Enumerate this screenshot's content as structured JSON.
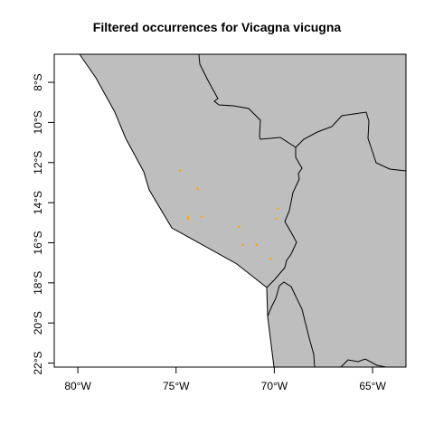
{
  "map": {
    "title": "Filtered occurrences for Vicagna vicugna",
    "x_ticks": [
      {
        "value": -80,
        "label": "80°W"
      },
      {
        "value": -75,
        "label": "75°W"
      },
      {
        "value": -70,
        "label": "70°W"
      },
      {
        "value": -65,
        "label": "65°W"
      }
    ],
    "y_ticks": [
      {
        "value": -8,
        "label": "8°S"
      },
      {
        "value": -10,
        "label": "10°S"
      },
      {
        "value": -12,
        "label": "12°S"
      },
      {
        "value": -14,
        "label": "14°S"
      },
      {
        "value": -16,
        "label": "16°S"
      },
      {
        "value": -18,
        "label": "18°S"
      },
      {
        "value": -20,
        "label": "20°S"
      },
      {
        "value": -22,
        "label": "22°S"
      }
    ],
    "extent": {
      "lon": [
        -81.2,
        -63.3
      ],
      "lat": [
        -22.2,
        -6.6
      ]
    },
    "colors": {
      "land": "#bebebe",
      "border": "#000000",
      "points": "#f5a623",
      "sea": "#ffffff"
    },
    "occurrences": [
      {
        "lon": -74.8,
        "lat": -12.4
      },
      {
        "lon": -73.9,
        "lat": -13.3
      },
      {
        "lon": -74.4,
        "lat": -14.7
      },
      {
        "lon": -74.4,
        "lat": -14.8
      },
      {
        "lon": -73.7,
        "lat": -14.7
      },
      {
        "lon": -69.8,
        "lat": -14.3
      },
      {
        "lon": -69.9,
        "lat": -14.8
      },
      {
        "lon": -71.8,
        "lat": -15.2
      },
      {
        "lon": -71.6,
        "lat": -16.1
      },
      {
        "lon": -70.9,
        "lat": -16.1
      },
      {
        "lon": -70.2,
        "lat": -16.8
      }
    ]
  }
}
